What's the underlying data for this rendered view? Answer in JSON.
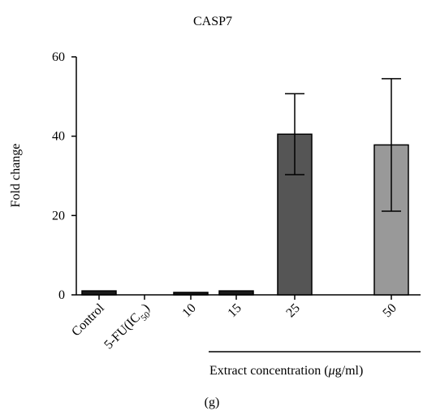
{
  "chart_data": {
    "type": "bar",
    "title": "CASP7",
    "ylabel": "Fold change",
    "xlabel": "",
    "ylim": [
      0,
      60
    ],
    "yticks": [
      0,
      20,
      40,
      60
    ],
    "categories": [
      "Control",
      "5-FU(IC50)",
      "10",
      "15",
      "25",
      "50"
    ],
    "category_label_parts": [
      {
        "main": "Control"
      },
      {
        "main": "5-FU(IC",
        "sub": "50",
        "tail": ")"
      },
      {
        "main": "10"
      },
      {
        "main": "15"
      },
      {
        "main": "25"
      },
      {
        "main": "50"
      }
    ],
    "values": [
      1.0,
      0.0,
      0.5,
      1.0,
      40.5,
      37.8
    ],
    "error": [
      0.3,
      0.0,
      0.2,
      0.3,
      10.2,
      16.7
    ],
    "bar_colors": [
      "#1a1a1a",
      "#1a1a1a",
      "#1a1a1a",
      "#1a1a1a",
      "#555555",
      "#999999"
    ],
    "group_annotation": {
      "label_pre": "Extract concentration (",
      "label_mu": "μ",
      "label_post": "g/ml)",
      "categories": [
        "10",
        "15",
        "25",
        "50"
      ]
    },
    "panel_label": "(g)"
  }
}
